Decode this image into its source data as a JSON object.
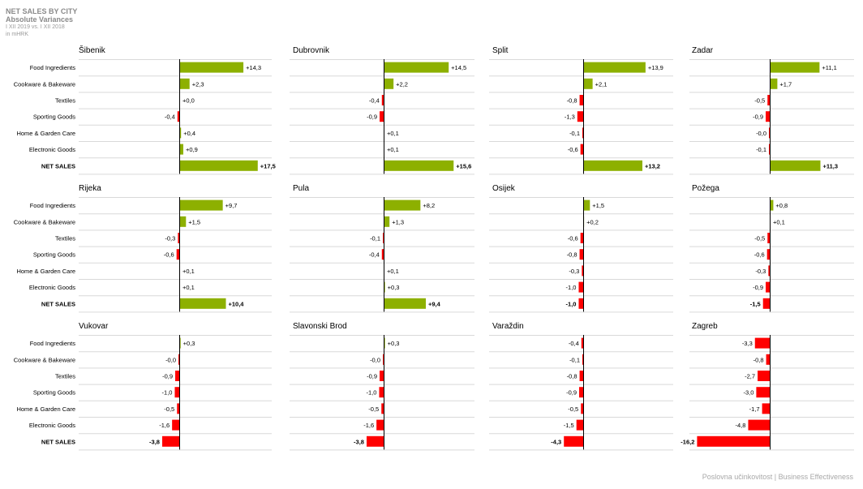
{
  "header": {
    "title": "NET SALES BY CITY",
    "subtitle": "Absolute Variances",
    "period": "I XII 2019 vs. I XII 2018",
    "unit": "in mHRK"
  },
  "footer": "Poslovna učinkovitost | Business Effectiveness",
  "colors": {
    "positive": "#8db000",
    "negative": "#ff0000",
    "axis": "#000000",
    "grid": "#d9d9d9"
  },
  "chart_data": {
    "type": "bar",
    "orientation": "horizontal",
    "categories": [
      "Food Ingredients",
      "Cookware & Bakeware",
      "Textiles",
      "Sporting Goods",
      "Home & Garden Care",
      "Electronic Goods",
      "NET SALES"
    ],
    "series": [
      {
        "name": "Šibenik",
        "values": [
          14.3,
          2.3,
          0.0,
          -0.4,
          0.4,
          0.9,
          17.5
        ],
        "labels": [
          "+14,3",
          "+2,3",
          "+0,0",
          "-0,4",
          "+0,4",
          "+0,9",
          "+17,5"
        ]
      },
      {
        "name": "Dubrovnik",
        "values": [
          14.5,
          2.2,
          -0.4,
          -0.9,
          0.1,
          0.1,
          15.6
        ],
        "labels": [
          "+14,5",
          "+2,2",
          "-0,4",
          "-0,9",
          "+0,1",
          "+0,1",
          "+15,6"
        ]
      },
      {
        "name": "Split",
        "values": [
          13.9,
          2.1,
          -0.8,
          -1.3,
          -0.1,
          -0.6,
          13.2
        ],
        "labels": [
          "+13,9",
          "+2,1",
          "-0,8",
          "-1,3",
          "-0,1",
          "-0,6",
          "+13,2"
        ]
      },
      {
        "name": "Zadar",
        "values": [
          11.1,
          1.7,
          -0.5,
          -0.9,
          -0.0,
          -0.1,
          11.3
        ],
        "labels": [
          "+11,1",
          "+1,7",
          "-0,5",
          "-0,9",
          "-0,0",
          "-0,1",
          "+11,3"
        ]
      },
      {
        "name": "Rijeka",
        "values": [
          9.7,
          1.5,
          -0.3,
          -0.6,
          0.1,
          0.1,
          10.4
        ],
        "labels": [
          "+9,7",
          "+1,5",
          "-0,3",
          "-0,6",
          "+0,1",
          "+0,1",
          "+10,4"
        ]
      },
      {
        "name": "Pula",
        "values": [
          8.2,
          1.3,
          -0.1,
          -0.4,
          0.1,
          0.3,
          9.4
        ],
        "labels": [
          "+8,2",
          "+1,3",
          "-0,1",
          "-0,4",
          "+0,1",
          "+0,3",
          "+9,4"
        ]
      },
      {
        "name": "Osijek",
        "values": [
          1.5,
          0.2,
          -0.6,
          -0.8,
          -0.3,
          -1.0,
          -1.0
        ],
        "labels": [
          "+1,5",
          "+0,2",
          "-0,6",
          "-0,8",
          "-0,3",
          "-1,0",
          "-1,0"
        ]
      },
      {
        "name": "Požega",
        "values": [
          0.8,
          0.1,
          -0.5,
          -0.6,
          -0.3,
          -0.9,
          -1.5
        ],
        "labels": [
          "+0,8",
          "+0,1",
          "-0,5",
          "-0,6",
          "-0,3",
          "-0,9",
          "-1,5"
        ]
      },
      {
        "name": "Vukovar",
        "values": [
          0.3,
          -0.0,
          -0.9,
          -1.0,
          -0.5,
          -1.6,
          -3.8
        ],
        "labels": [
          "+0,3",
          "-0,0",
          "-0,9",
          "-1,0",
          "-0,5",
          "-1,6",
          "-3,8"
        ]
      },
      {
        "name": "Slavonski Brod",
        "values": [
          0.3,
          -0.0,
          -0.9,
          -1.0,
          -0.5,
          -1.6,
          -3.8
        ],
        "labels": [
          "+0,3",
          "-0,0",
          "-0,9",
          "-1,0",
          "-0,5",
          "-1,6",
          "-3,8"
        ]
      },
      {
        "name": "Varaždin",
        "values": [
          -0.4,
          -0.1,
          -0.8,
          -0.9,
          -0.5,
          -1.5,
          -4.3
        ],
        "labels": [
          "-0,4",
          "-0,1",
          "-0,8",
          "-0,9",
          "-0,5",
          "-1,5",
          "-4,3"
        ]
      },
      {
        "name": "Zagreb",
        "values": [
          -3.3,
          -0.8,
          -2.7,
          -3.0,
          -1.7,
          -4.8,
          -16.2
        ],
        "labels": [
          "-3,3",
          "-0,8",
          "-2,7",
          "-3,0",
          "-1,7",
          "-4,8",
          "-16,2"
        ]
      }
    ]
  }
}
